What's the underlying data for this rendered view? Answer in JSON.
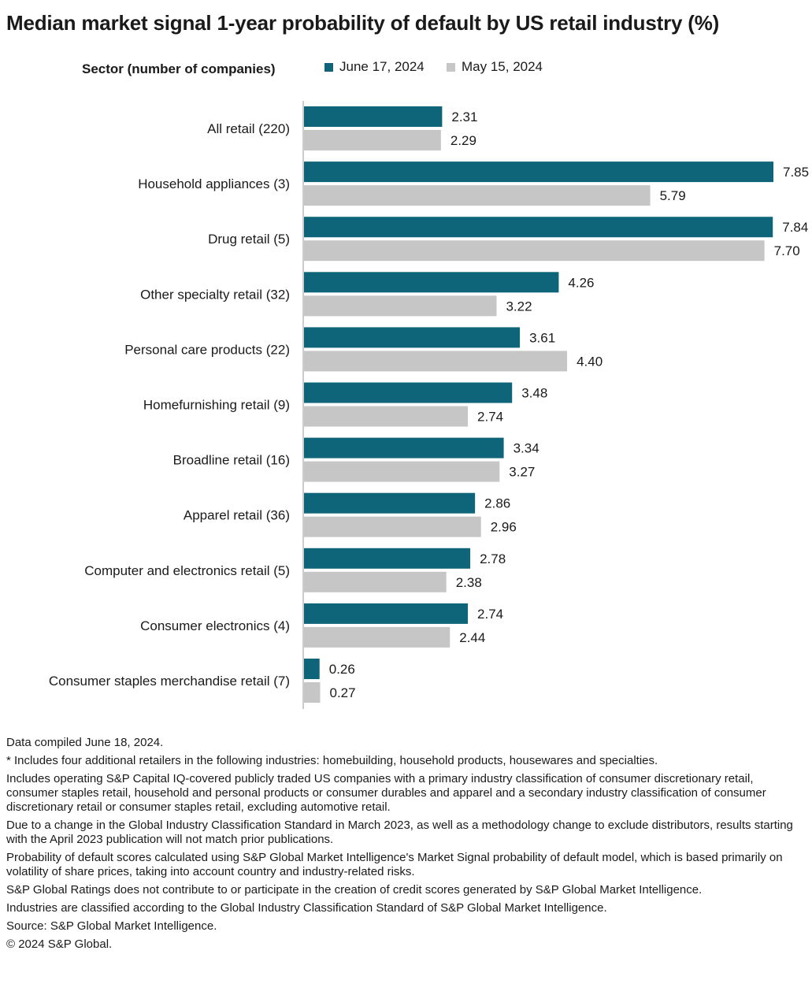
{
  "title": "Median market signal 1-year probability of default by US retail industry (%)",
  "legend": {
    "header": "Sector (number of companies)",
    "items": [
      {
        "label": "June 17, 2024",
        "color": "#0e6479"
      },
      {
        "label": "May 15, 2024",
        "color": "#c6c6c6"
      }
    ]
  },
  "chart_data": {
    "type": "bar",
    "orientation": "horizontal",
    "categories": [
      "All retail (220)",
      "Household appliances (3)",
      "Drug retail (5)",
      "Other specialty retail (32)",
      "Personal care products (22)",
      "Homefurnishing retail (9)",
      "Broadline retail (16)",
      "Apparel retail (36)",
      "Computer and electronics retail (5)",
      "Consumer electronics (4)",
      "Consumer staples merchandise retail (7)"
    ],
    "series": [
      {
        "name": "June 17, 2024",
        "color": "#0e6479",
        "values": [
          2.31,
          7.85,
          7.84,
          4.26,
          3.61,
          3.48,
          3.34,
          2.86,
          2.78,
          2.74,
          0.26
        ],
        "labels": [
          "2.31",
          "7.85",
          "7.84",
          "4.26",
          "3.61",
          "3.48",
          "3.34",
          "2.86",
          "2.78",
          "2.74",
          "0.26"
        ]
      },
      {
        "name": "May 15, 2024",
        "color": "#c6c6c6",
        "values": [
          2.29,
          5.79,
          7.7,
          3.22,
          4.4,
          2.74,
          3.27,
          2.96,
          2.38,
          2.44,
          0.27
        ],
        "labels": [
          "2.29",
          "5.79",
          "7.70",
          "3.22",
          "4.40",
          "2.74",
          "3.27",
          "2.96",
          "2.38",
          "2.44",
          "0.27"
        ]
      }
    ],
    "xlim": [
      0,
      7.85
    ],
    "grid": false,
    "legend_position": "top"
  },
  "footnotes": [
    "Data compiled June 18, 2024.",
    "* Includes four additional retailers in the following industries: homebuilding, household products, housewares and specialties.",
    "Includes operating S&P Capital IQ-covered publicly traded US companies with a primary industry classification of consumer discretionary retail, consumer staples retail, household and personal products or consumer durables and apparel and a secondary industry classification of consumer discretionary retail or consumer staples retail, excluding automotive retail.",
    "Due to a change in the Global Industry Classification Standard in March 2023, as well as a methodology change to exclude distributors, results starting with the April 2023 publication will not match prior publications.",
    "Probability of default scores calculated using S&P Global Market Intelligence's Market Signal probability of default model, which is based primarily on volatility of share prices, taking into account country and industry-related risks.",
    "S&P Global Ratings does not contribute to or participate in the creation of credit scores generated by S&P Global Market Intelligence.",
    "Industries are classified according to the Global Industry Classification Standard of S&P Global Market Intelligence.",
    "Source: S&P Global Market Intelligence.",
    "© 2024 S&P Global."
  ]
}
